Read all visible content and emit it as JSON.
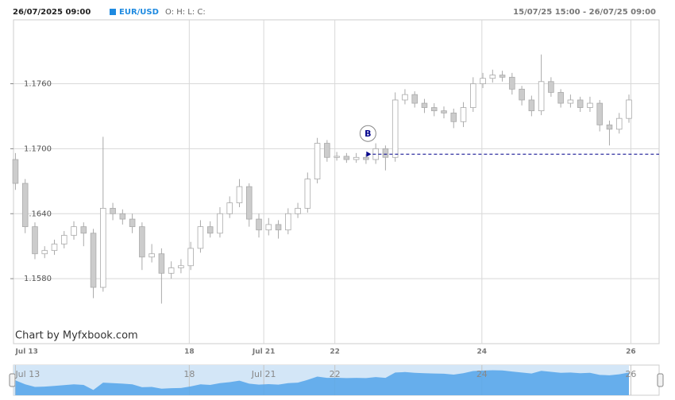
{
  "chart_data": {
    "type": "candlestick",
    "header_datetime": "26/07/2025 09:00",
    "symbol": "EUR/USD",
    "ohlc_caption": "O: H: L: C:",
    "range_text": "15/07/25 15:00 - 26/07/25 09:00",
    "watermark": "Chart by Myfxbook.com",
    "up_color": "#ffffff",
    "down_color": "#cccccc",
    "wick_color": "#aaaaaa",
    "navigator_color": "#5aa7ea",
    "grid": true,
    "ylim": [
      1.152,
      1.1819
    ],
    "yticks": [
      {
        "value": 1.158,
        "label": "1.1580"
      },
      {
        "value": 1.164,
        "label": "1.1640"
      },
      {
        "value": 1.17,
        "label": "1.1700"
      },
      {
        "value": 1.176,
        "label": "1.1760"
      }
    ],
    "xlim": [
      -0.2,
      66.1
    ],
    "xticks": [
      {
        "value": 0,
        "label": "Jul 13"
      },
      {
        "value": 17.85,
        "label": "18"
      },
      {
        "value": 25.5,
        "label": "Jul 21"
      },
      {
        "value": 32.8,
        "label": "22"
      },
      {
        "value": 47.9,
        "label": "24"
      },
      {
        "value": 63.2,
        "label": "26"
      }
    ],
    "open": [
      1.169,
      1.1668,
      1.1628,
      1.1603,
      1.1606,
      1.1612,
      1.162,
      1.1628,
      1.1622,
      1.1572,
      1.1645,
      1.164,
      1.1635,
      1.1628,
      1.16,
      1.1603,
      1.1585,
      1.159,
      1.1592,
      1.1608,
      1.1628,
      1.1622,
      1.164,
      1.165,
      1.1665,
      1.1635,
      1.1625,
      1.163,
      1.1625,
      1.164,
      1.1645,
      1.1672,
      1.1705,
      1.1692,
      1.1693,
      1.169,
      1.1692,
      1.169,
      1.17,
      1.1692,
      1.1745,
      1.175,
      1.1742,
      1.1738,
      1.1735,
      1.1733,
      1.1725,
      1.1738,
      1.176,
      1.1765,
      1.1768,
      1.1766,
      1.1755,
      1.1745,
      1.1735,
      1.1762,
      1.1752,
      1.1742,
      1.1745,
      1.1738,
      1.1742,
      1.1722,
      1.1718,
      1.1728
    ],
    "high": [
      1.1696,
      1.1672,
      1.1632,
      1.161,
      1.1616,
      1.1624,
      1.1633,
      1.1632,
      1.1626,
      1.1711,
      1.165,
      1.1644,
      1.164,
      1.1632,
      1.1612,
      1.1608,
      1.1596,
      1.1598,
      1.1614,
      1.1634,
      1.1633,
      1.1646,
      1.1656,
      1.1672,
      1.1668,
      1.164,
      1.1636,
      1.1634,
      1.1645,
      1.165,
      1.1678,
      1.171,
      1.1708,
      1.1697,
      1.1696,
      1.1696,
      1.1695,
      1.1705,
      1.1703,
      1.1752,
      1.1755,
      1.1753,
      1.1746,
      1.1742,
      1.1739,
      1.1737,
      1.1743,
      1.1766,
      1.177,
      1.1773,
      1.1772,
      1.177,
      1.1758,
      1.1749,
      1.1787,
      1.1766,
      1.1755,
      1.175,
      1.1748,
      1.1748,
      1.1745,
      1.1726,
      1.1733,
      1.175
    ],
    "low": [
      1.1662,
      1.1622,
      1.1598,
      1.1599,
      1.1602,
      1.1608,
      1.1616,
      1.161,
      1.1562,
      1.1568,
      1.1634,
      1.163,
      1.1622,
      1.1588,
      1.1595,
      1.1557,
      1.158,
      1.1585,
      1.1588,
      1.1604,
      1.1618,
      1.1618,
      1.1636,
      1.1646,
      1.1628,
      1.1618,
      1.162,
      1.1617,
      1.1621,
      1.1636,
      1.1641,
      1.1668,
      1.1688,
      1.1689,
      1.1687,
      1.1687,
      1.1686,
      1.1686,
      1.168,
      1.1688,
      1.1741,
      1.1738,
      1.1733,
      1.173,
      1.1728,
      1.1719,
      1.172,
      1.1734,
      1.1756,
      1.1761,
      1.1762,
      1.175,
      1.174,
      1.173,
      1.1731,
      1.1748,
      1.1738,
      1.1738,
      1.1734,
      1.1734,
      1.1716,
      1.1703,
      1.1714,
      1.1724
    ],
    "close": [
      1.1668,
      1.1628,
      1.1603,
      1.1606,
      1.1612,
      1.162,
      1.1628,
      1.1622,
      1.1572,
      1.1645,
      1.164,
      1.1635,
      1.1628,
      1.16,
      1.1603,
      1.1585,
      1.159,
      1.1592,
      1.1608,
      1.1628,
      1.1622,
      1.164,
      1.165,
      1.1665,
      1.1635,
      1.1625,
      1.163,
      1.1625,
      1.164,
      1.1645,
      1.1672,
      1.1705,
      1.1692,
      1.1693,
      1.169,
      1.1692,
      1.169,
      1.17,
      1.1692,
      1.1745,
      1.175,
      1.1742,
      1.1738,
      1.1735,
      1.1733,
      1.1725,
      1.1738,
      1.176,
      1.1765,
      1.1768,
      1.1766,
      1.1755,
      1.1745,
      1.1735,
      1.1762,
      1.1752,
      1.1742,
      1.1745,
      1.1738,
      1.1742,
      1.1722,
      1.1718,
      1.1728,
      1.1745
    ],
    "annotation": {
      "label": "B",
      "x": 36.2,
      "price": 1.1695,
      "color": "#00008b"
    }
  }
}
